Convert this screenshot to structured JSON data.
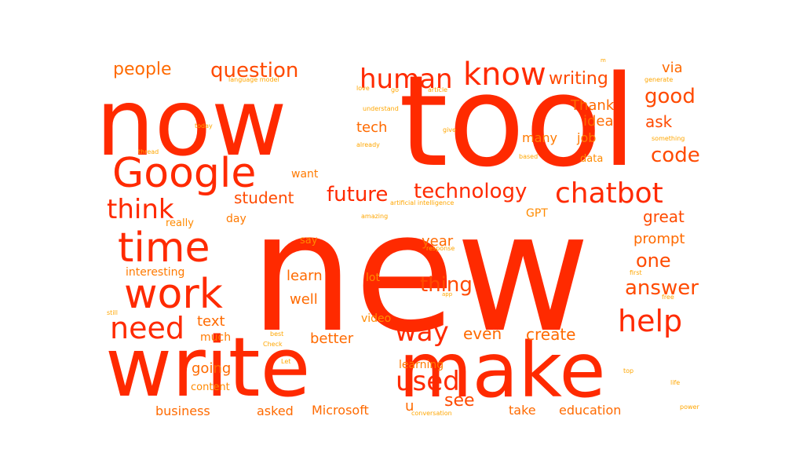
{
  "colors": {
    "background": "#ffffff",
    "primary": "#ff2a00",
    "secondary": "#ff6a00",
    "tertiary": "#ffa600"
  },
  "words": [
    {
      "text": "new",
      "weight": 1.0,
      "color": "#ff2a00",
      "orientation": "horizontal"
    },
    {
      "text": "tool",
      "weight": 0.82,
      "color": "#ff2a00",
      "orientation": "horizontal"
    },
    {
      "text": "now",
      "weight": 0.6,
      "color": "#ff2a00",
      "orientation": "horizontal"
    },
    {
      "text": "write",
      "weight": 0.56,
      "color": "#ff2a00",
      "orientation": "horizontal"
    },
    {
      "text": "make",
      "weight": 0.52,
      "color": "#ff2a00",
      "orientation": "horizontal"
    },
    {
      "text": "Google",
      "weight": 0.3,
      "color": "#ff2a00",
      "orientation": "horizontal"
    },
    {
      "text": "time",
      "weight": 0.28,
      "color": "#ff2a00",
      "orientation": "horizontal"
    },
    {
      "text": "work",
      "weight": 0.27,
      "color": "#ff2a00",
      "orientation": "horizontal"
    },
    {
      "text": "need",
      "weight": 0.2,
      "color": "#ff2a00",
      "orientation": "horizontal"
    },
    {
      "text": "help",
      "weight": 0.2,
      "color": "#ff2a00",
      "orientation": "horizontal"
    },
    {
      "text": "know",
      "weight": 0.19,
      "color": "#ff2a00",
      "orientation": "horizontal"
    },
    {
      "text": "human",
      "weight": 0.18,
      "color": "#ff2a00",
      "orientation": "horizontal"
    },
    {
      "text": "chatbot",
      "weight": 0.18,
      "color": "#ff2a00",
      "orientation": "horizontal"
    },
    {
      "text": "think",
      "weight": 0.17,
      "color": "#ff2a00",
      "orientation": "horizontal"
    },
    {
      "text": "way",
      "weight": 0.17,
      "color": "#ff2a00",
      "orientation": "horizontal"
    },
    {
      "text": "used",
      "weight": 0.16,
      "color": "#ff2a00",
      "orientation": "horizontal"
    },
    {
      "text": "future",
      "weight": 0.14,
      "color": "#ff2a00",
      "orientation": "horizontal"
    },
    {
      "text": "technology",
      "weight": 0.14,
      "color": "#ff2a00",
      "orientation": "horizontal"
    },
    {
      "text": "question",
      "weight": 0.13,
      "color": "#ff4a00",
      "orientation": "horizontal"
    },
    {
      "text": "good",
      "weight": 0.13,
      "color": "#ff4a00",
      "orientation": "horizontal"
    },
    {
      "text": "code",
      "weight": 0.13,
      "color": "#ff4a00",
      "orientation": "horizontal"
    },
    {
      "text": "thing",
      "weight": 0.13,
      "color": "#ff4a00",
      "orientation": "horizontal"
    },
    {
      "text": "answer",
      "weight": 0.12,
      "color": "#ff4a00",
      "orientation": "horizontal"
    },
    {
      "text": "people",
      "weight": 0.11,
      "color": "#ff6a00",
      "orientation": "horizontal"
    },
    {
      "text": "one",
      "weight": 0.11,
      "color": "#ff4a00",
      "orientation": "horizontal"
    },
    {
      "text": "see",
      "weight": 0.11,
      "color": "#ff4a00",
      "orientation": "horizontal"
    },
    {
      "text": "writing",
      "weight": 0.1,
      "color": "#ff4a00",
      "orientation": "horizontal"
    },
    {
      "text": "ask",
      "weight": 0.1,
      "color": "#ff4a00",
      "orientation": "horizontal"
    },
    {
      "text": "great",
      "weight": 0.1,
      "color": "#ff4a00",
      "orientation": "horizontal"
    },
    {
      "text": "student",
      "weight": 0.09,
      "color": "#ff4a00",
      "orientation": "horizontal"
    },
    {
      "text": "even",
      "weight": 0.09,
      "color": "#ff6a00",
      "orientation": "horizontal"
    },
    {
      "text": "create",
      "weight": 0.09,
      "color": "#ff6a00",
      "orientation": "horizontal"
    },
    {
      "text": "via",
      "weight": 0.09,
      "color": "#ff6a00",
      "orientation": "horizontal"
    },
    {
      "text": "prompt",
      "weight": 0.09,
      "color": "#ff6a00",
      "orientation": "horizontal"
    },
    {
      "text": "tech",
      "weight": 0.08,
      "color": "#ff6a00",
      "orientation": "horizontal"
    },
    {
      "text": "Thank",
      "weight": 0.08,
      "color": "#ff6a00",
      "orientation": "horizontal"
    },
    {
      "text": "idea",
      "weight": 0.08,
      "color": "#ff6a00",
      "orientation": "horizontal"
    },
    {
      "text": "year",
      "weight": 0.08,
      "color": "#ff6a00",
      "orientation": "horizontal"
    },
    {
      "text": "learn",
      "weight": 0.08,
      "color": "#ff6a00",
      "orientation": "horizontal"
    },
    {
      "text": "well",
      "weight": 0.08,
      "color": "#ff6a00",
      "orientation": "horizontal"
    },
    {
      "text": "better",
      "weight": 0.08,
      "color": "#ff6a00",
      "orientation": "horizontal"
    },
    {
      "text": "text",
      "weight": 0.08,
      "color": "#ff6a00",
      "orientation": "horizontal"
    },
    {
      "text": "going",
      "weight": 0.08,
      "color": "#ff6a00",
      "orientation": "horizontal"
    },
    {
      "text": "business",
      "weight": 0.08,
      "color": "#ff6a00",
      "orientation": "horizontal"
    },
    {
      "text": "asked",
      "weight": 0.08,
      "color": "#ff6a00",
      "orientation": "horizontal"
    },
    {
      "text": "Microsoft",
      "weight": 0.08,
      "color": "#ff6a00",
      "orientation": "horizontal"
    },
    {
      "text": "take",
      "weight": 0.08,
      "color": "#ff6a00",
      "orientation": "horizontal"
    },
    {
      "text": "education",
      "weight": 0.08,
      "color": "#ff6a00",
      "orientation": "horizontal"
    },
    {
      "text": "u",
      "weight": 0.08,
      "color": "#ff6a00",
      "orientation": "horizontal"
    },
    {
      "text": "many",
      "weight": 0.07,
      "color": "#ff7a00",
      "orientation": "horizontal"
    },
    {
      "text": "job",
      "weight": 0.07,
      "color": "#ff7a00",
      "orientation": "horizontal"
    },
    {
      "text": "interesting",
      "weight": 0.07,
      "color": "#ff7a00",
      "orientation": "horizontal"
    },
    {
      "text": "day",
      "weight": 0.07,
      "color": "#ff7a00",
      "orientation": "horizontal"
    },
    {
      "text": "want",
      "weight": 0.07,
      "color": "#ff7a00",
      "orientation": "horizontal"
    },
    {
      "text": "learning",
      "weight": 0.07,
      "color": "#ff7a00",
      "orientation": "horizontal"
    },
    {
      "text": "much",
      "weight": 0.07,
      "color": "#ff7a00",
      "orientation": "horizontal"
    },
    {
      "text": "content",
      "weight": 0.06,
      "color": "#ff8a00",
      "orientation": "horizontal"
    },
    {
      "text": "data",
      "weight": 0.06,
      "color": "#ff8a00",
      "orientation": "horizontal"
    },
    {
      "text": "really",
      "weight": 0.06,
      "color": "#ff8a00",
      "orientation": "horizontal"
    },
    {
      "text": "say",
      "weight": 0.06,
      "color": "#ff8a00",
      "orientation": "horizontal"
    },
    {
      "text": "lot",
      "weight": 0.06,
      "color": "#ff8a00",
      "orientation": "horizontal"
    },
    {
      "text": "video",
      "weight": 0.06,
      "color": "#ff8a00",
      "orientation": "horizontal"
    },
    {
      "text": "GPT",
      "weight": 0.06,
      "color": "#ff8a00",
      "orientation": "horizontal"
    },
    {
      "text": "language model",
      "weight": 0.03,
      "color": "#ffa600",
      "orientation": "horizontal"
    },
    {
      "text": "love",
      "weight": 0.03,
      "color": "#ffa600",
      "orientation": "horizontal"
    },
    {
      "text": "go",
      "weight": 0.03,
      "color": "#ffa600",
      "orientation": "horizontal"
    },
    {
      "text": "article",
      "weight": 0.03,
      "color": "#ffa600",
      "orientation": "horizontal"
    },
    {
      "text": "generate",
      "weight": 0.03,
      "color": "#ffa600",
      "orientation": "horizontal"
    },
    {
      "text": "understand",
      "weight": 0.03,
      "color": "#ffa600",
      "orientation": "horizontal"
    },
    {
      "text": "today",
      "weight": 0.03,
      "color": "#ffa600",
      "orientation": "horizontal"
    },
    {
      "text": "give",
      "weight": 0.03,
      "color": "#ffa600",
      "orientation": "horizontal"
    },
    {
      "text": "something",
      "weight": 0.03,
      "color": "#ffa600",
      "orientation": "horizontal"
    },
    {
      "text": "already",
      "weight": 0.03,
      "color": "#ffa600",
      "orientation": "horizontal"
    },
    {
      "text": "thread",
      "weight": 0.03,
      "color": "#ffa600",
      "orientation": "horizontal"
    },
    {
      "text": "based",
      "weight": 0.03,
      "color": "#ffa600",
      "orientation": "horizontal"
    },
    {
      "text": "artificial intelligence",
      "weight": 0.03,
      "color": "#ffa600",
      "orientation": "horizontal"
    },
    {
      "text": "amazing",
      "weight": 0.03,
      "color": "#ffa600",
      "orientation": "horizontal"
    },
    {
      "text": "response",
      "weight": 0.03,
      "color": "#ffa600",
      "orientation": "horizontal"
    },
    {
      "text": "first",
      "weight": 0.03,
      "color": "#ffa600",
      "orientation": "horizontal"
    },
    {
      "text": "app",
      "weight": 0.03,
      "color": "#ffa600",
      "orientation": "horizontal"
    },
    {
      "text": "free",
      "weight": 0.03,
      "color": "#ffa600",
      "orientation": "horizontal"
    },
    {
      "text": "still",
      "weight": 0.03,
      "color": "#ffa600",
      "orientation": "horizontal"
    },
    {
      "text": "best",
      "weight": 0.03,
      "color": "#ffa600",
      "orientation": "horizontal"
    },
    {
      "text": "Check",
      "weight": 0.03,
      "color": "#ffa600",
      "orientation": "horizontal"
    },
    {
      "text": "Let",
      "weight": 0.03,
      "color": "#ffa600",
      "orientation": "horizontal"
    },
    {
      "text": "top",
      "weight": 0.03,
      "color": "#ffa600",
      "orientation": "horizontal"
    },
    {
      "text": "life",
      "weight": 0.03,
      "color": "#ffa600",
      "orientation": "horizontal"
    },
    {
      "text": "conversation",
      "weight": 0.03,
      "color": "#ffa600",
      "orientation": "horizontal"
    },
    {
      "text": "power",
      "weight": 0.03,
      "color": "#ffa600",
      "orientation": "horizontal"
    },
    {
      "text": "m",
      "weight": 0.02,
      "color": "#ffa600",
      "orientation": "horizontal"
    }
  ]
}
